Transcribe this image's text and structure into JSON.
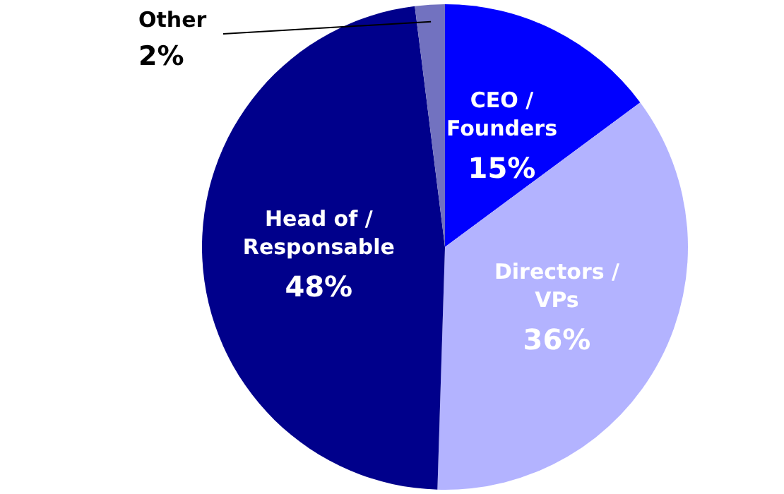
{
  "chart_data": {
    "type": "pie",
    "categories": [
      "CEO / Founders",
      "Directors / VPs",
      "Head of / Responsable",
      "Other"
    ],
    "values": [
      15,
      36,
      48,
      2
    ],
    "value_labels": [
      "15%",
      "36%",
      "48%",
      "2%"
    ],
    "colors": [
      "#0000ff",
      "#b3b3ff",
      "#00008b",
      "#7272c0"
    ]
  }
}
